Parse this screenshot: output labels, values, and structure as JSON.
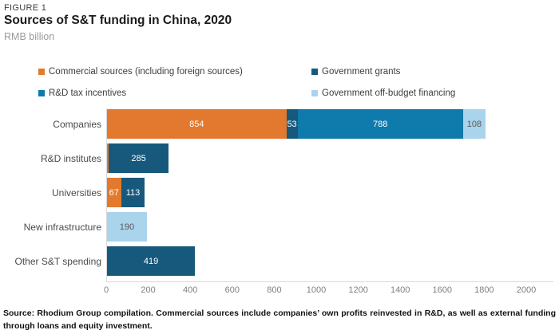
{
  "header": {
    "figure_label": "FIGURE 1",
    "title": "Sources of S&T funding in China, 2020",
    "subtitle": "RMB billion"
  },
  "colors": {
    "commercial": "#e2792e",
    "government_grants": "#17597c",
    "rnd_tax_incentives": "#0f7aac",
    "off_budget_financing": "#a9d4ec",
    "axis_line": "#d9d9d9",
    "axis_text": "#7f7f7f",
    "label_on_light": "#58595b",
    "label_on_dark": "#ffffff"
  },
  "legend": [
    {
      "label": "Commercial sources (including foreign sources)",
      "color_key": "commercial",
      "col": 0,
      "row": 0
    },
    {
      "label": "Government grants",
      "color_key": "government_grants",
      "col": 1,
      "row": 0
    },
    {
      "label": "R&D tax incentives",
      "color_key": "rnd_tax_incentives",
      "col": 0,
      "row": 1
    },
    {
      "label": "Government off-budget financing",
      "color_key": "off_budget_financing",
      "col": 1,
      "row": 1
    }
  ],
  "chart_data": {
    "type": "bar",
    "stacked": true,
    "horizontal": true,
    "title": "Sources of S&T funding in China, 2020",
    "xlabel": "RMB billion",
    "xlim": [
      0,
      2000
    ],
    "xticks": [
      0,
      200,
      400,
      600,
      800,
      1000,
      1200,
      1400,
      1600,
      1800,
      2000
    ],
    "grid": false,
    "legend_position": "top",
    "categories": [
      "Companies",
      "R&D institutes",
      "Universities",
      "New infrastructure",
      "Other S&T spending"
    ],
    "series": [
      {
        "name": "Commercial sources (including foreign sources)",
        "color_key": "commercial",
        "label_color_key": "label_on_dark",
        "values": [
          854,
          8,
          67,
          0,
          0
        ]
      },
      {
        "name": "Government grants",
        "color_key": "government_grants",
        "label_color_key": "label_on_dark",
        "values": [
          53,
          285,
          113,
          0,
          419
        ]
      },
      {
        "name": "R&D tax incentives",
        "color_key": "rnd_tax_incentives",
        "label_color_key": "label_on_dark",
        "values": [
          788,
          0,
          0,
          0,
          0
        ]
      },
      {
        "name": "Government off-budget financing",
        "color_key": "off_budget_financing",
        "label_color_key": "label_on_light",
        "values": [
          108,
          0,
          0,
          190,
          0
        ]
      }
    ],
    "min_labeled_value": 20
  },
  "footer": {
    "source": "Source: Rhodium Group compilation. Commercial sources include companies’ own profits reinvested in R&D, as well as external funding through loans and equity investment."
  }
}
